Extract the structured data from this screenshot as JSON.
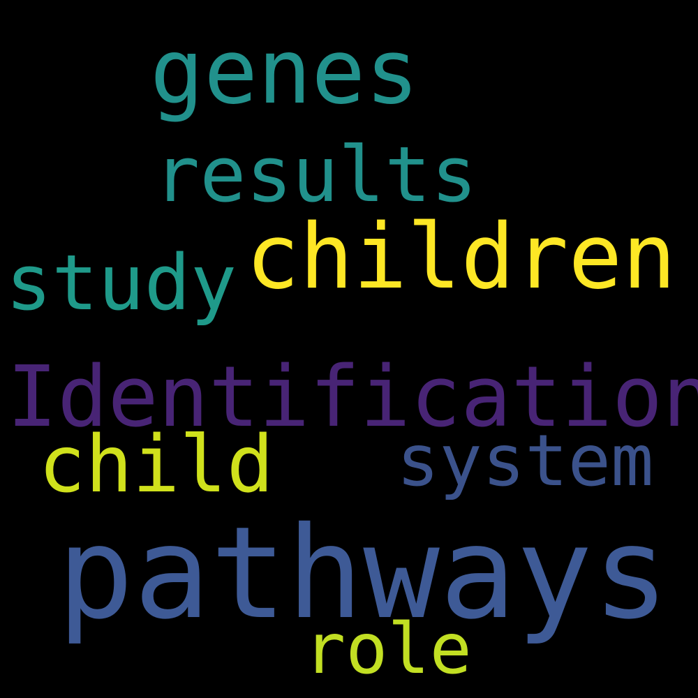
{
  "cloud": {
    "words": [
      {
        "text": "genes",
        "color": "#21918c"
      },
      {
        "text": "results",
        "color": "#21918c"
      },
      {
        "text": "children",
        "color": "#fde725"
      },
      {
        "text": "study",
        "color": "#1f9a8a"
      },
      {
        "text": "Identification",
        "color": "#482475"
      },
      {
        "text": "child",
        "color": "#d0e11c"
      },
      {
        "text": "system",
        "color": "#3b528b"
      },
      {
        "text": "pathways",
        "color": "#3e5a96"
      },
      {
        "text": "role",
        "color": "#c2df23"
      }
    ]
  }
}
